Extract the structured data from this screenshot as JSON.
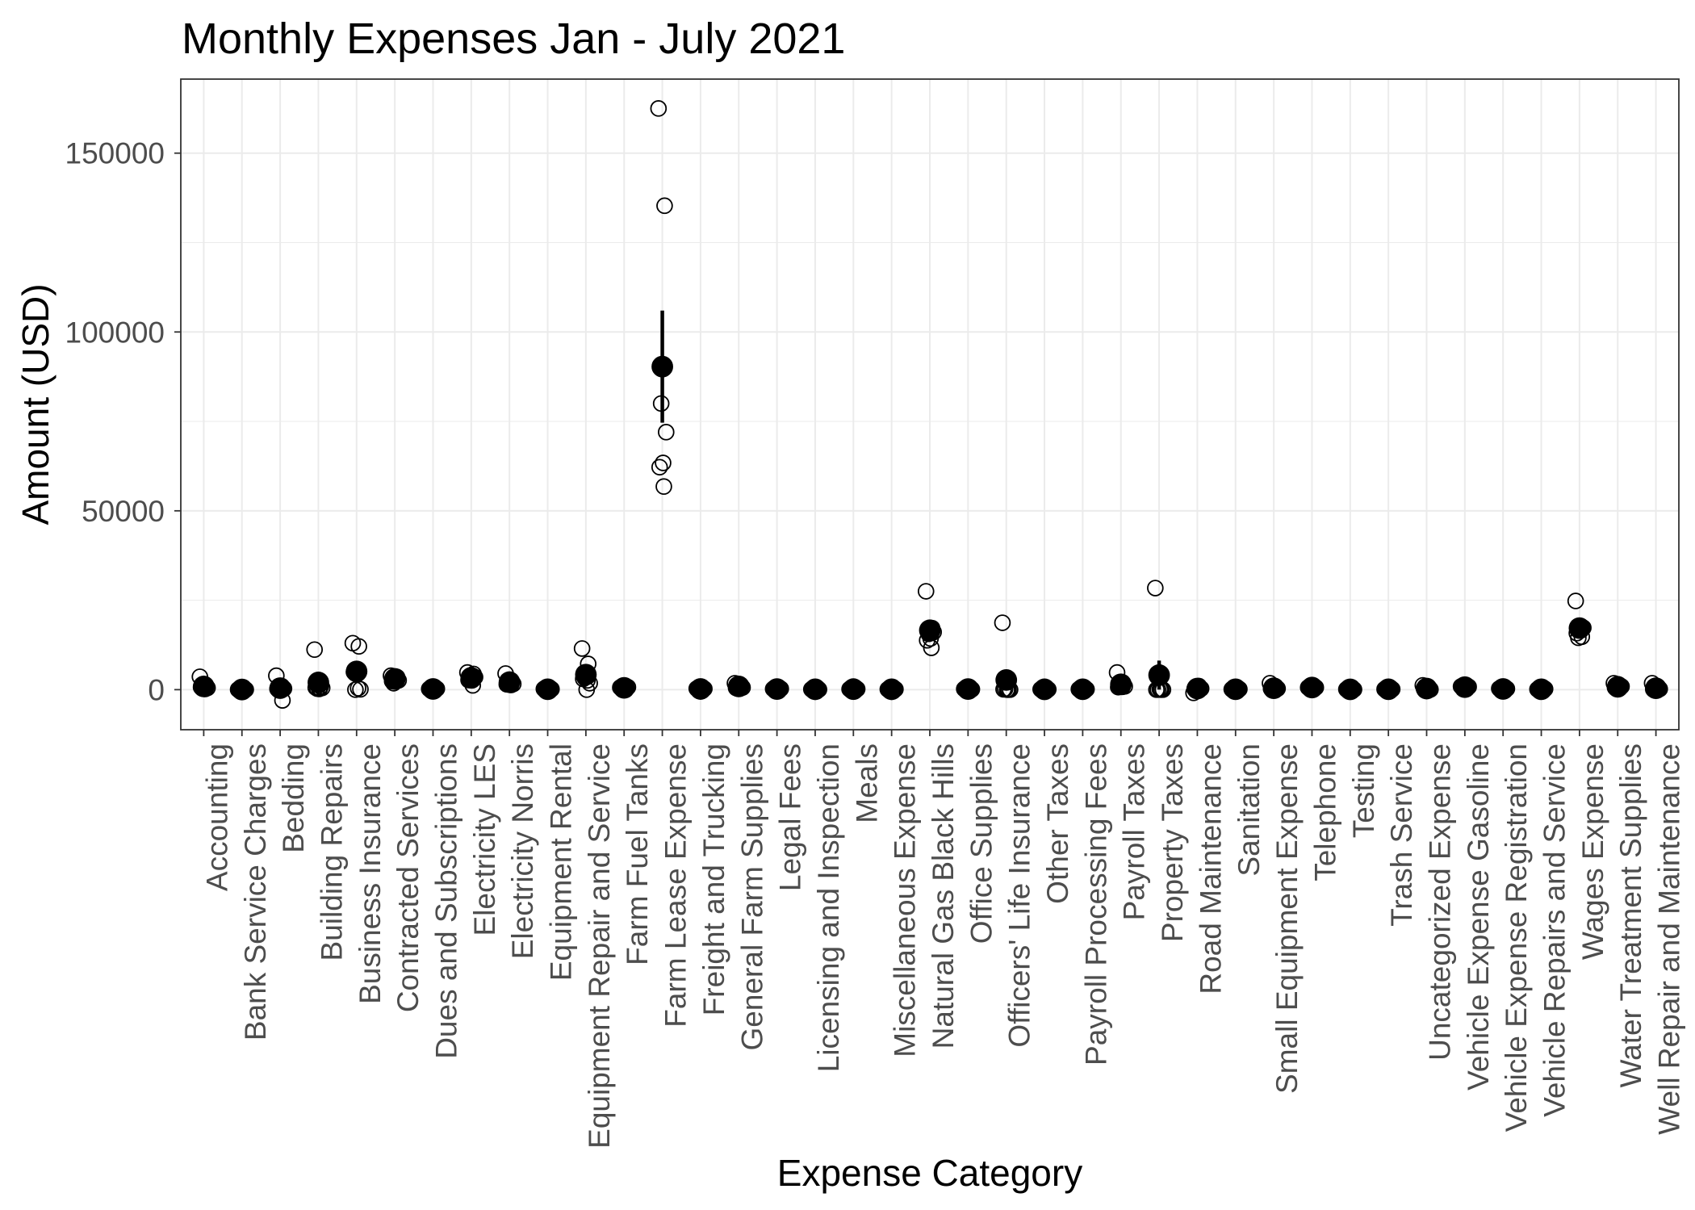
{
  "chart_data": {
    "type": "scatter",
    "title": "Monthly Expenses Jan - July 2021",
    "xlabel": "Expense Category",
    "ylabel": "Amount (USD)",
    "ylim": [
      -11200,
      170700
    ],
    "yticks": [
      0,
      50000,
      100000,
      150000
    ],
    "ytick_labels": [
      "0",
      "50000",
      "100000",
      "150000"
    ],
    "grid": true,
    "colors": {
      "points": "#000000",
      "grid": "#ebebeb",
      "panel_border": "#333333",
      "tick_labels": "#4d4d4d"
    },
    "categories": [
      "Accounting",
      "Bank Service Charges",
      "Bedding",
      "Building Repairs",
      "Business Insurance",
      "Contracted Services",
      "Dues and Subscriptions",
      "Electricity LES",
      "Electricity Norris",
      "Equipment Rental",
      "Equipment Repair and Service",
      "Farm Fuel Tanks",
      "Farm Lease Expense",
      "Freight and Trucking",
      "General Farm Supplies",
      "Legal Fees",
      "Licensing and Inspection",
      "Meals",
      "Miscellaneous Expense",
      "Natural Gas Black Hills",
      "Office Supplies",
      "Officers' Life Insurance",
      "Other Taxes",
      "Payroll Processing Fees",
      "Payroll Taxes",
      "Property Taxes",
      "Road Maintenance",
      "Sanitation",
      "Small Equipment Expense",
      "Telephone",
      "Testing",
      "Trash Service",
      "Uncategorized Expense",
      "Vehicle Expense Gasoline",
      "Vehicle Expense Registration",
      "Vehicle Repairs and Service",
      "Wages Expense",
      "Water Treatment Supplies",
      "Well Repair and Maintenance"
    ],
    "amounts": [
      [
        3600,
        600,
        400,
        500,
        300,
        700,
        200
      ],
      [
        40,
        35,
        50,
        30,
        45,
        60,
        25
      ],
      [
        3900,
        -3000,
        400,
        300,
        500,
        200,
        600
      ],
      [
        11200,
        900,
        300,
        500,
        200,
        600,
        400
      ],
      [
        13000,
        12100,
        0,
        100,
        5200,
        4900,
        400
      ],
      [
        3900,
        3500,
        1800,
        2600,
        3200,
        2400,
        3600
      ],
      [
        200,
        150,
        300,
        250,
        100,
        180,
        220
      ],
      [
        4800,
        4400,
        3900,
        3500,
        2600,
        2700,
        1200
      ],
      [
        4500,
        2100,
        1800,
        1600,
        1900,
        1500,
        1300
      ],
      [
        200,
        100,
        50,
        150,
        120,
        80,
        90
      ],
      [
        11500,
        7200,
        3300,
        1800,
        0,
        3000,
        2600
      ],
      [
        600,
        500,
        400,
        700,
        300,
        550,
        450
      ],
      [
        162500,
        135300,
        80000,
        72000,
        63400,
        62200,
        56800
      ],
      [
        300,
        200,
        100,
        250,
        150,
        180,
        120
      ],
      [
        1800,
        700,
        900,
        600,
        800,
        500,
        1000
      ],
      [
        200,
        150,
        100,
        250,
        180,
        120,
        200
      ],
      [
        100,
        80,
        150,
        50,
        120,
        90,
        110
      ],
      [
        150,
        200,
        100,
        180,
        120,
        160,
        140
      ],
      [
        100,
        150,
        80,
        120,
        90,
        110,
        60
      ],
      [
        27500,
        17200,
        15600,
        16100,
        14300,
        13800,
        11700
      ],
      [
        200,
        150,
        250,
        100,
        180,
        220,
        120
      ],
      [
        18700,
        0,
        200,
        0,
        0,
        100,
        0
      ],
      [
        100,
        50,
        150,
        80,
        120,
        60,
        90
      ],
      [
        120,
        100,
        130,
        110,
        90,
        140,
        100
      ],
      [
        4800,
        1400,
        1100,
        900,
        800,
        700,
        800
      ],
      [
        28400,
        0,
        0,
        0,
        100,
        0,
        0
      ],
      [
        -900,
        600,
        400,
        300,
        500,
        200,
        1000
      ],
      [
        100,
        120,
        80,
        150,
        90,
        110,
        100
      ],
      [
        1800,
        200,
        100,
        300,
        150,
        250,
        0
      ],
      [
        600,
        550,
        650,
        600,
        580,
        620,
        600
      ],
      [
        100,
        0,
        150,
        50,
        100,
        80,
        120
      ],
      [
        120,
        120,
        120,
        130,
        110,
        120,
        120
      ],
      [
        1200,
        100,
        200,
        50,
        150,
        300,
        100
      ],
      [
        900,
        600,
        700,
        800,
        500,
        700,
        700
      ],
      [
        300,
        150,
        200,
        250,
        100,
        200,
        200
      ],
      [
        100,
        150,
        50,
        200,
        80,
        120,
        100
      ],
      [
        24800,
        14800,
        14500,
        17300,
        16600,
        15800,
        16600
      ],
      [
        1800,
        700,
        600,
        900,
        500,
        600,
        500
      ],
      [
        1800,
        100,
        300,
        200,
        200,
        100,
        100
      ]
    ]
  }
}
